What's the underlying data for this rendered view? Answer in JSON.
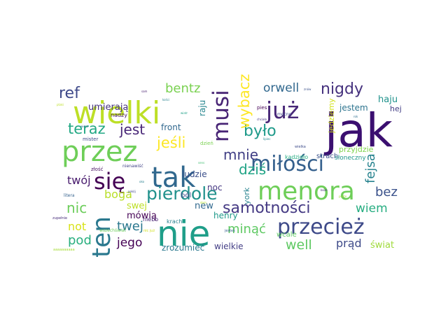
{
  "words": [
    {
      "text": "jak",
      "color": "#3b0f70"
    },
    {
      "text": "nie",
      "color": "#1f9e89"
    },
    {
      "text": "wielki",
      "color": "#bddf26"
    },
    {
      "text": "przez",
      "color": "#6ece58"
    },
    {
      "text": "tak",
      "color": "#31688e"
    },
    {
      "text": "menora",
      "color": "#6ece58"
    },
    {
      "text": "przecież",
      "color": "#3e4a89"
    },
    {
      "text": "już",
      "color": "#482878"
    },
    {
      "text": "miłości",
      "color": "#35608d"
    },
    {
      "text": "się",
      "color": "#440154"
    },
    {
      "text": "ten",
      "color": "#2a788e"
    },
    {
      "text": "musi",
      "color": "#482475"
    },
    {
      "text": "pierdole",
      "color": "#21918c"
    },
    {
      "text": "samotności",
      "color": "#443983"
    },
    {
      "text": "nigdy",
      "color": "#46327e"
    },
    {
      "text": "teraz",
      "color": "#22a884"
    },
    {
      "text": "jeśli",
      "color": "#fde725"
    },
    {
      "text": "mnie",
      "color": "#424086"
    },
    {
      "text": "było",
      "color": "#1f9a8a"
    },
    {
      "text": "wybacz",
      "color": "#fde725"
    },
    {
      "text": "dziś",
      "color": "#20a486"
    },
    {
      "text": "fejsa",
      "color": "#26828e"
    },
    {
      "text": "ref",
      "color": "#3e4989"
    },
    {
      "text": "orwell",
      "color": "#31688e"
    },
    {
      "text": "bentz",
      "color": "#7ad151"
    },
    {
      "text": "jest",
      "color": "#482677"
    },
    {
      "text": "bez",
      "color": "#3b528b"
    },
    {
      "text": "nic",
      "color": "#6ccd5a"
    },
    {
      "text": "twój",
      "color": "#481b6d"
    },
    {
      "text": "boga",
      "color": "#b8de29"
    },
    {
      "text": "wiem",
      "color": "#27ad81"
    },
    {
      "text": "minąć",
      "color": "#5ec962"
    },
    {
      "text": "twej",
      "color": "#2a778e"
    },
    {
      "text": "jego",
      "color": "#440154"
    },
    {
      "text": "pod",
      "color": "#29af7f"
    },
    {
      "text": "not",
      "color": "#d8e219"
    },
    {
      "text": "well",
      "color": "#5ec962"
    },
    {
      "text": "prąd",
      "color": "#3e4a89"
    },
    {
      "text": "umierają",
      "color": "#46337f"
    },
    {
      "text": "haju",
      "color": "#20928c"
    },
    {
      "text": "hej",
      "color": "#433e85"
    },
    {
      "text": "jestem",
      "color": "#2c738e"
    },
    {
      "text": "jedziemy",
      "color": "#d2e21b"
    },
    {
      "text": "przyjdzie",
      "color": "#7fd34e"
    },
    {
      "text": "front",
      "color": "#31688e"
    },
    {
      "text": "raju",
      "color": "#25858e"
    },
    {
      "text": "ludzie",
      "color": "#3c508b"
    },
    {
      "text": "noc",
      "color": "#453781"
    },
    {
      "text": "york",
      "color": "#26828e"
    },
    {
      "text": "swej",
      "color": "#bddf26"
    },
    {
      "text": "mówią",
      "color": "#440154"
    },
    {
      "text": "new",
      "color": "#31688e"
    },
    {
      "text": "henry",
      "color": "#1f998a"
    },
    {
      "text": "wcale",
      "color": "#5ec962"
    },
    {
      "text": "świat",
      "color": "#9fda3a"
    },
    {
      "text": "wielkie",
      "color": "#433e85"
    },
    {
      "text": "zrozumieć",
      "color": "#2a788e"
    },
    {
      "text": "ból",
      "color": "#3e4a89"
    },
    {
      "text": "niebo",
      "color": "#482475"
    },
    {
      "text": "krach",
      "color": "#27808e"
    },
    {
      "text": "strach",
      "color": "#3b528b"
    },
    {
      "text": "kadzidło",
      "color": "#25ac82"
    },
    {
      "text": "słoneczny",
      "color": "#1f968b"
    },
    {
      "text": "nadzy",
      "color": "#481769"
    },
    {
      "text": "dzień",
      "color": "#7ad151"
    },
    {
      "text": "pies",
      "color": "#440154"
    },
    {
      "text": "mocno",
      "color": "#3f4889"
    },
    {
      "text": "mister",
      "color": "#3e4989"
    },
    {
      "text": "złość",
      "color": "#471063"
    },
    {
      "text": "nienawiść",
      "color": "#404387"
    },
    {
      "text": "wszechświat",
      "color": "#6ccd5a"
    },
    {
      "text": "litera",
      "color": "#34618d"
    },
    {
      "text": "zupełnie",
      "color": "#472d7b"
    },
    {
      "text": "nic już",
      "color": "#d0e11c"
    },
    {
      "text": "jesteś",
      "color": "#355f8d"
    },
    {
      "text": "wielka",
      "color": "#3e4c8a"
    },
    {
      "text": "chciało",
      "color": "#46327e"
    },
    {
      "text": "puste",
      "color": "#a0da39"
    },
    {
      "text": "ptaki",
      "color": "#bddf26"
    },
    {
      "text": "kości",
      "color": "#26828e"
    },
    {
      "text": "wiatr",
      "color": "#1fa088"
    },
    {
      "text": "sam",
      "color": "#481f70"
    },
    {
      "text": "oko",
      "color": "#277f8e"
    },
    {
      "text": "sens",
      "color": "#42be71"
    },
    {
      "text": "dom",
      "color": "#b5de2b"
    },
    {
      "text": "lipiec",
      "color": "#25838e"
    },
    {
      "text": "boże",
      "color": "#472d7b"
    },
    {
      "text": "rok",
      "color": "#2d708e"
    },
    {
      "text": "znów",
      "color": "#3b528b"
    },
    {
      "text": "wiesz",
      "color": "#2c728e"
    },
    {
      "text": "pokój",
      "color": "#3f4788"
    },
    {
      "text": "aaaaaaaaaa",
      "color": "#a5db36"
    }
  ]
}
